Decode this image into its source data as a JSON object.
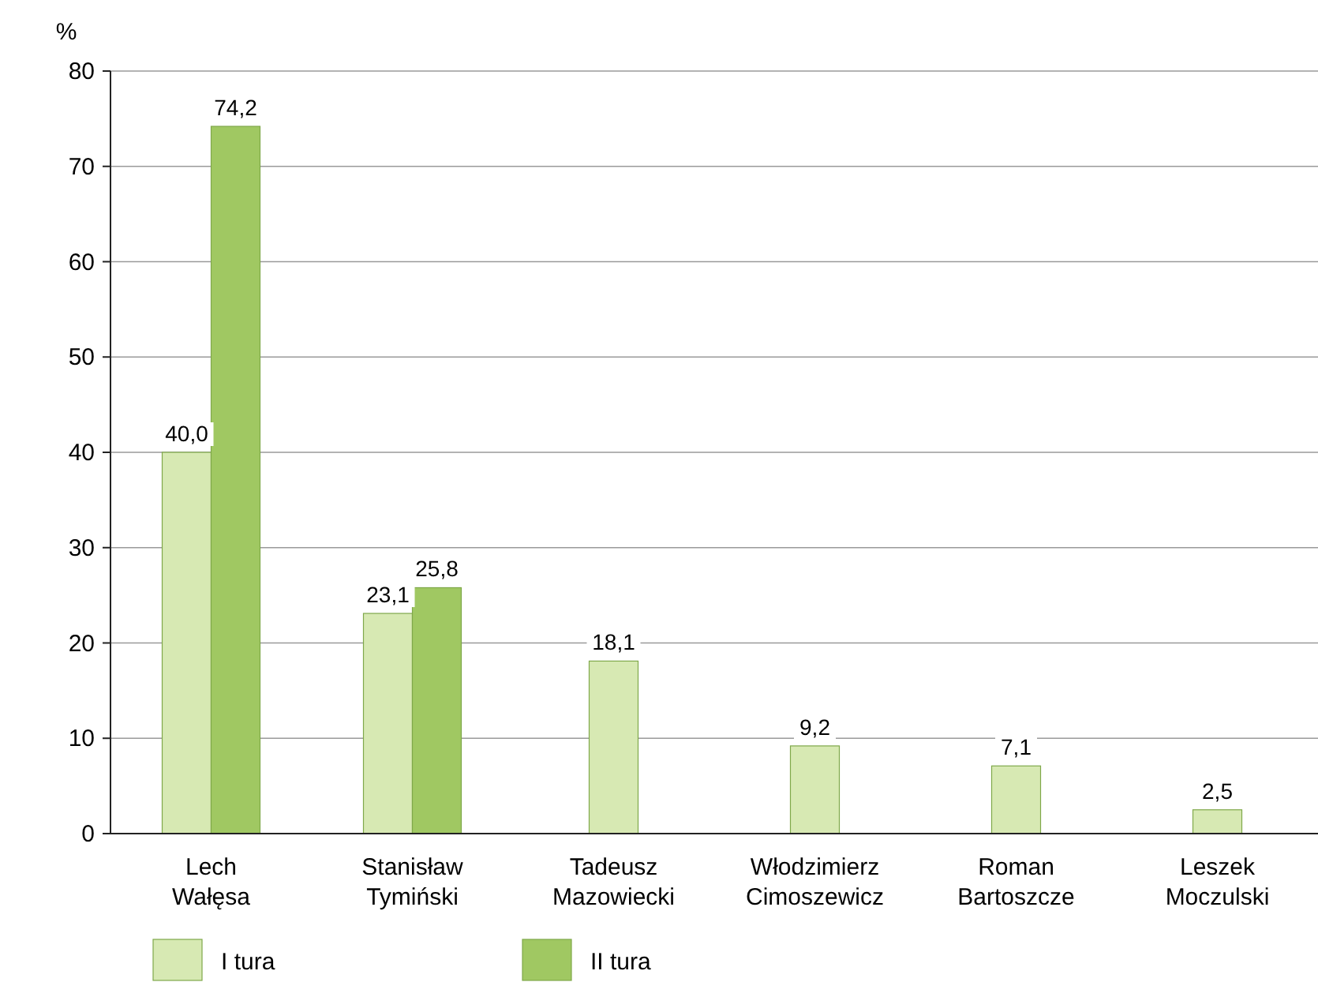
{
  "chart_data": {
    "type": "bar",
    "ylabel": "%",
    "categories": [
      "Lech Wałęsa",
      "Stanisław Tymiński",
      "Tadeusz Mazowiecki",
      "Włodzimierz Cimoszewicz",
      "Roman Bartoszcze",
      "Leszek Moczulski"
    ],
    "series": [
      {
        "name": "I tura",
        "color": "#d7e9b3",
        "values": [
          40.0,
          23.1,
          18.1,
          9.2,
          7.1,
          2.5
        ],
        "value_labels": [
          "40,0",
          "23,1",
          "18,1",
          "9,2",
          "7,1",
          "2,5"
        ]
      },
      {
        "name": "II tura",
        "color": "#a0c862",
        "values": [
          74.2,
          25.8,
          null,
          null,
          null,
          null
        ],
        "value_labels": [
          "74,2",
          "25,8",
          null,
          null,
          null,
          null
        ]
      }
    ],
    "ylim": [
      0,
      80
    ],
    "yticks": [
      0,
      10,
      20,
      30,
      40,
      50,
      60,
      70,
      80
    ],
    "grid": "y",
    "legend": "bottom left"
  }
}
